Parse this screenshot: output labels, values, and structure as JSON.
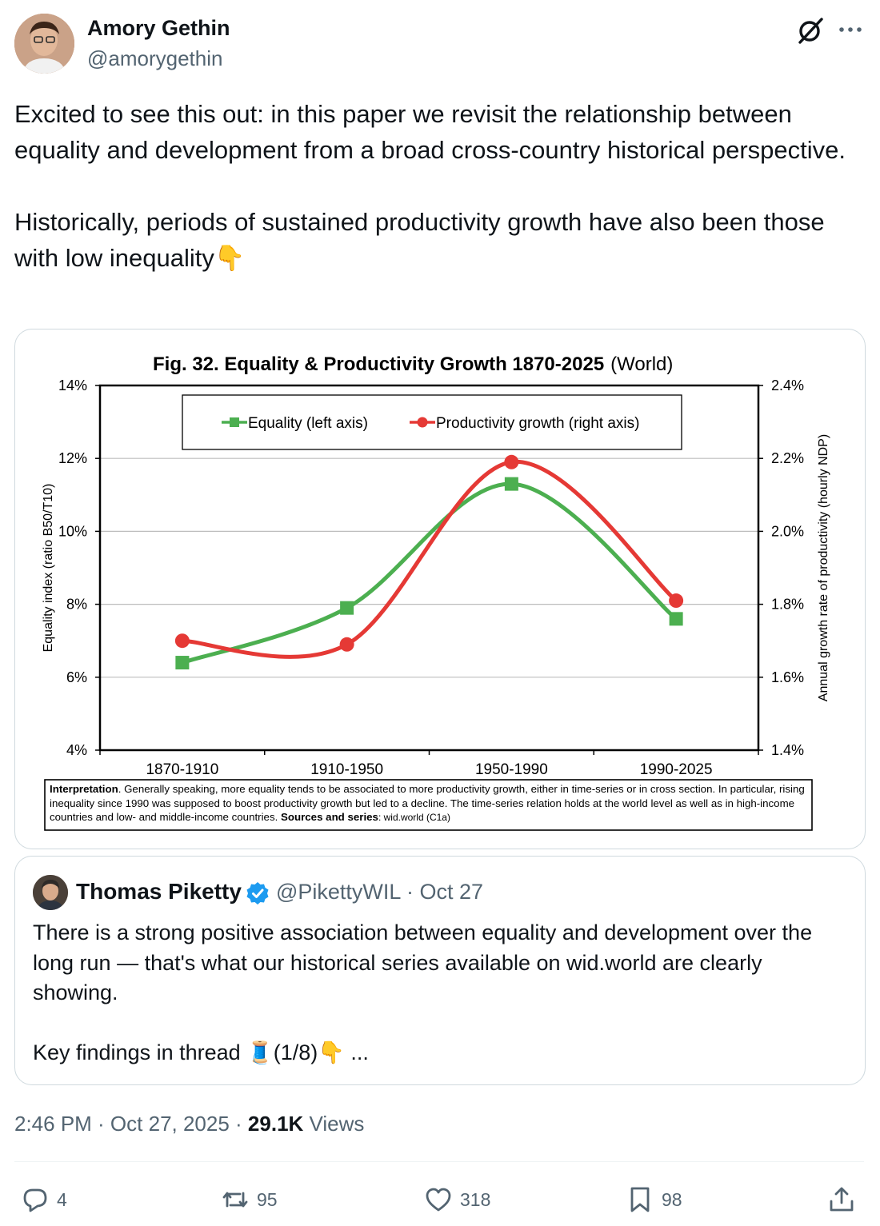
{
  "author": {
    "name": "Amory Gethin",
    "handle": "@amorygethin"
  },
  "tweet": {
    "text": "Excited to see this out: in this paper we revisit the relationship between equality and development from a broad cross-country historical perspective.\n\nHistorically, periods of sustained productivity growth have also been those with low inequality👇"
  },
  "chart_data": {
    "type": "line",
    "title": "Fig. 32. Equality & Productivity Growth 1870-2025",
    "title_suffix": "(World)",
    "categories": [
      "1870-1910",
      "1910-1950",
      "1950-1990",
      "1990-2025"
    ],
    "series": [
      {
        "name": "Equality (left axis)",
        "axis": "left",
        "color": "#4caf50",
        "marker": "square",
        "values": [
          6.4,
          7.9,
          11.3,
          7.6
        ]
      },
      {
        "name": "Productivity growth (right axis)",
        "axis": "right",
        "color": "#e53935",
        "marker": "circle",
        "values": [
          1.7,
          1.69,
          2.19,
          1.81
        ]
      }
    ],
    "left_axis": {
      "label": "Equality index (ratio B50/T10)",
      "ylim": [
        4,
        14
      ],
      "ticks": [
        "4%",
        "6%",
        "8%",
        "10%",
        "12%",
        "14%"
      ]
    },
    "right_axis": {
      "label": "Annual growth rate of productivity (hourly NDP)",
      "ylim": [
        1.4,
        2.4
      ],
      "ticks": [
        "1.4%",
        "1.6%",
        "1.8%",
        "2.0%",
        "2.2%",
        "2.4%"
      ]
    },
    "note": {
      "lead": "Interpretation",
      "text": ". Generally speaking, more equality tends to be associated to more productivity growth, either in time-series or in cross section. In particular, rising inequality since 1990 was supposed to boost productivity growth but led to a decline. The time-series relation holds at the world level as well as in high-income countries and low- and middle-income countries.",
      "sources_label": "Sources and series",
      "sources_value": ": wid.world (C1a)"
    }
  },
  "quote": {
    "name": "Thomas Piketty",
    "handle": "@PikettyWIL",
    "date": "· Oct 27",
    "text": "There is a strong positive association between equality and development over the long run — that's what our historical series available on wid.world are clearly showing.\n\nKey findings in thread 🧵(1/8)👇 ..."
  },
  "meta": {
    "time": "2:46 PM · Oct 27, 2025 · ",
    "views": "29.1K",
    "views_label": " Views"
  },
  "actions": {
    "replies": "4",
    "reposts": "95",
    "likes": "318",
    "bookmarks": "98"
  }
}
